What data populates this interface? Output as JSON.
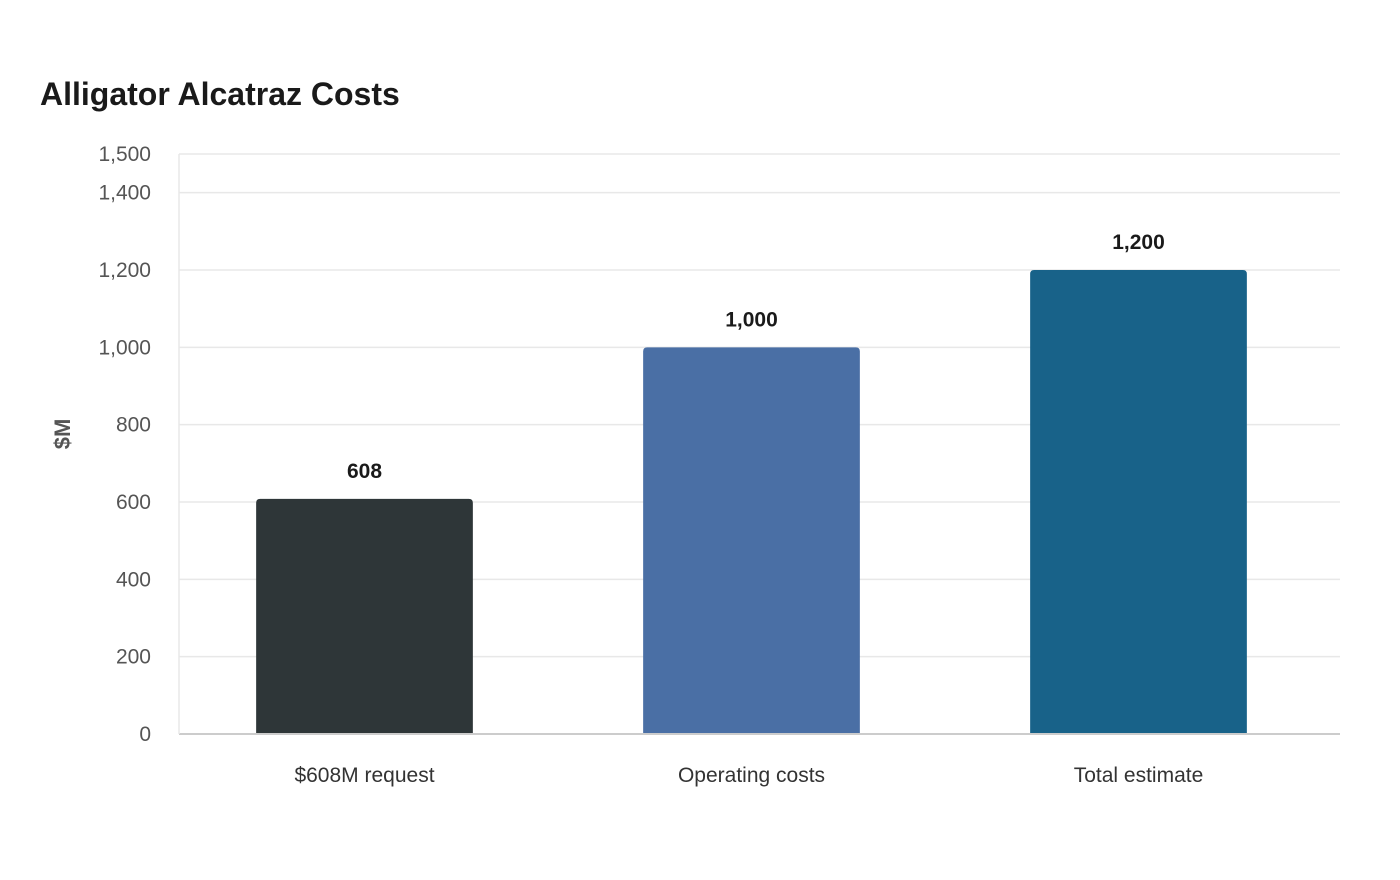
{
  "chart_data": {
    "type": "bar",
    "title": "Alligator Alcatraz Costs",
    "xlabel": "",
    "ylabel": "$M",
    "categories": [
      "$608M request",
      "Operating costs",
      "Total estimate"
    ],
    "values": [
      608,
      1000,
      1200
    ],
    "value_labels": [
      "608",
      "1,000",
      "1,200"
    ],
    "colors": [
      "#2e3638",
      "#4a6fa5",
      "#186289"
    ],
    "ylim": [
      0,
      1500
    ],
    "yticks": [
      0,
      200,
      400,
      600,
      800,
      1000,
      1200,
      1400,
      1500
    ],
    "ytick_labels": [
      "0",
      "200",
      "400",
      "600",
      "800",
      "1,000",
      "1,200",
      "1,400",
      "1,500"
    ],
    "grid": true,
    "legend": "none"
  }
}
